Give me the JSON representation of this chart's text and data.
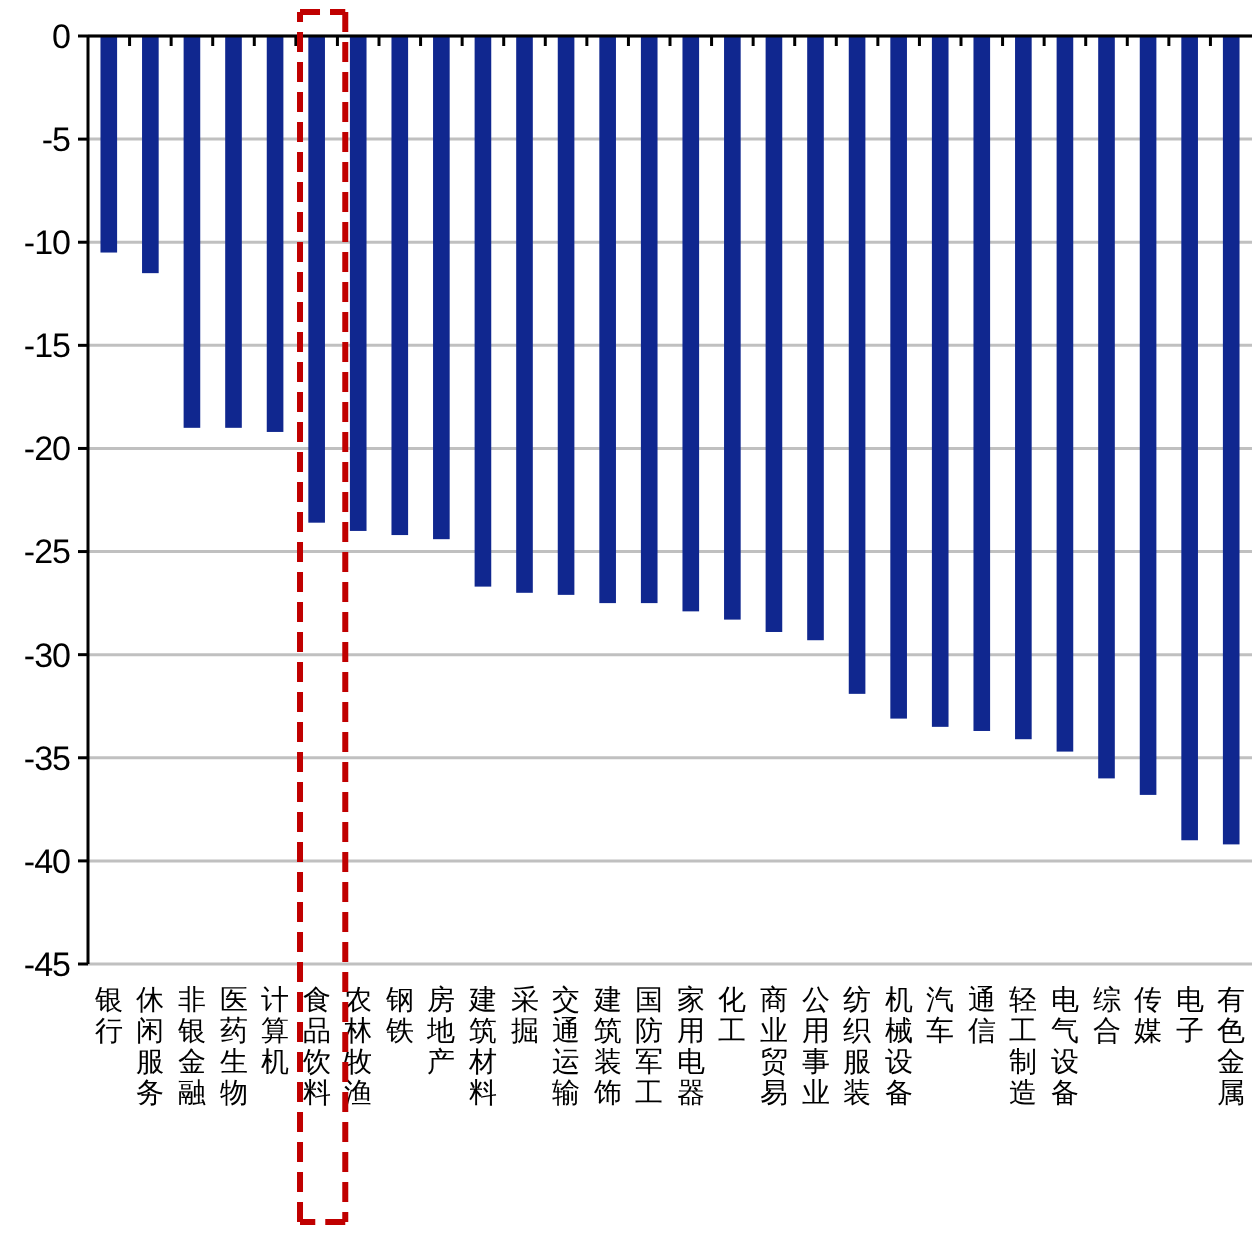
{
  "chart_data": {
    "type": "bar",
    "categories": [
      "银行",
      "休闲服务",
      "非银金融",
      "医药生物",
      "计算机",
      "食品饮料",
      "农林牧渔",
      "钢铁",
      "房地产",
      "建筑材料",
      "采掘",
      "交通运输",
      "建筑装饰",
      "国防军工",
      "家用电器",
      "化工",
      "商业贸易",
      "公用事业",
      "纺织服装",
      "机械设备",
      "汽车",
      "通信",
      "轻工制造",
      "电气设备",
      "综合",
      "传媒",
      "电子",
      "有色金属"
    ],
    "values": [
      -10.5,
      -11.5,
      -19,
      -19,
      -19.2,
      -23.6,
      -24,
      -24.2,
      -24.4,
      -26.7,
      -27,
      -27.1,
      -27.5,
      -27.5,
      -27.9,
      -28.3,
      -28.9,
      -29.3,
      -31.9,
      -33.1,
      -33.5,
      -33.7,
      -34.1,
      -34.7,
      -36,
      -36.8,
      -39,
      -39.2
    ],
    "color": "#10278f",
    "ylim": [
      -45,
      0
    ],
    "yticks": [
      0,
      -5,
      -10,
      -15,
      -20,
      -25,
      -30,
      -35,
      -40,
      -45
    ],
    "grid": "y"
  }
}
